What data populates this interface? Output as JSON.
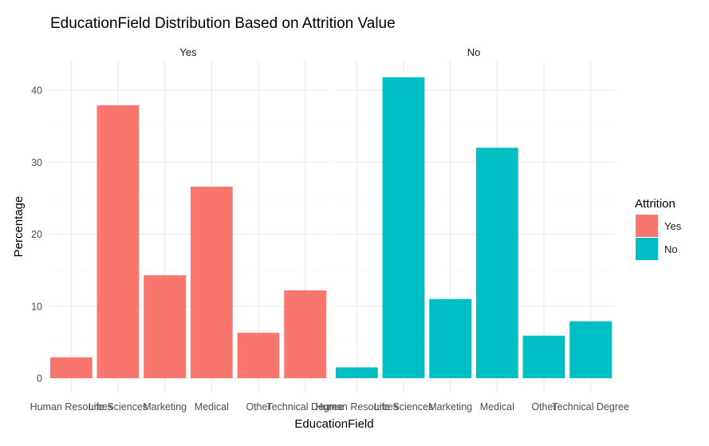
{
  "chart_data": {
    "type": "bar",
    "title": "EducationField Distribution Based on Attrition Value",
    "xlabel": "EducationField",
    "ylabel": "Percentage",
    "ylim": [
      0,
      42
    ],
    "yticks": [
      0,
      10,
      20,
      30,
      40
    ],
    "grid": true,
    "legend": {
      "title": "Attrition",
      "placement": "right",
      "entries": [
        {
          "label": "Yes",
          "color": "#F8766D"
        },
        {
          "label": "No",
          "color": "#00BFC4"
        }
      ]
    },
    "categories": [
      "Human Resources",
      "Life Sciences",
      "Marketing",
      "Medical",
      "Other",
      "Technical Degree"
    ],
    "facets": [
      {
        "label": "Yes",
        "color": "#F8766D",
        "values": [
          2.9,
          37.9,
          14.3,
          26.6,
          6.3,
          12.2
        ]
      },
      {
        "label": "No",
        "color": "#00BFC4",
        "values": [
          1.5,
          41.8,
          11.0,
          32.0,
          5.9,
          7.9
        ]
      }
    ]
  }
}
